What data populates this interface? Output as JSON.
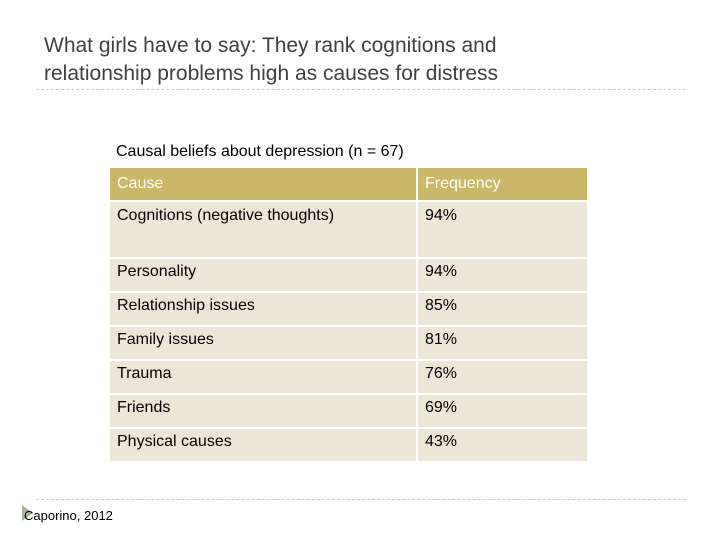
{
  "slide": {
    "title_line1": "What girls have to say: They rank cognitions and",
    "title_line2": "relationship problems high as causes for distress"
  },
  "table": {
    "caption": "Causal beliefs about depression (n = 67)",
    "headers": [
      "Cause",
      "Frequency"
    ],
    "rows": [
      {
        "cause": "Cognitions (negative thoughts)",
        "frequency": "94%"
      },
      {
        "cause": "Personality",
        "frequency": "94%"
      },
      {
        "cause": "Relationship issues",
        "frequency": "85%"
      },
      {
        "cause": "Family issues",
        "frequency": "81%"
      },
      {
        "cause": "Trauma",
        "frequency": "76%"
      },
      {
        "cause": "Friends",
        "frequency": "69%"
      },
      {
        "cause": "Physical causes",
        "frequency": "43%"
      }
    ],
    "header_color": "#cbb76a",
    "row_color": "#ece6d8"
  },
  "footer": {
    "citation": "Caporino, 2012",
    "icon": "play-triangle-icon"
  }
}
